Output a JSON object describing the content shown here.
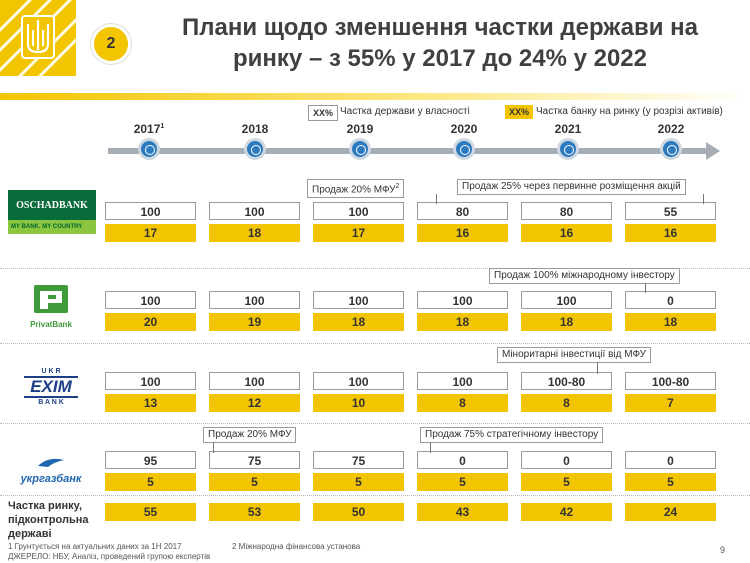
{
  "header": {
    "slide_number": "2",
    "title_line1": "Плани щодо зменшення частки держави на",
    "title_line2": "ринку – з 55% у 2017 до 24% у 2022"
  },
  "legend": {
    "white_box": "XX%",
    "white_text": "Частка держави у власності",
    "yellow_box": "XX%",
    "yellow_text": "Частка банку на ринку (у розрізі активів)"
  },
  "years": [
    "2017",
    "2018",
    "2019",
    "2020",
    "2021",
    "2022"
  ],
  "year_first_sup": "1",
  "banks": [
    {
      "name": "Oschadbank",
      "logo_line1": "OSCHADBANK",
      "logo_line2": "MY BANK. MY COUNTRY",
      "ownership": [
        "100",
        "100",
        "100",
        "80",
        "80",
        "55"
      ],
      "market": [
        "17",
        "18",
        "17",
        "16",
        "16",
        "16"
      ],
      "notes": [
        "Продаж 20% МФУ",
        "Продаж 25% через первинне розміщення акцій"
      ],
      "note1_sup": "2"
    },
    {
      "name": "PrivatBank",
      "logo_text": "PrivatBank",
      "ownership": [
        "100",
        "100",
        "100",
        "100",
        "100",
        "0"
      ],
      "market": [
        "20",
        "19",
        "18",
        "18",
        "18",
        "18"
      ],
      "notes": [
        "Продаж 100% міжнародному інвестору"
      ]
    },
    {
      "name": "Ukreximbank",
      "logo_top": "U K R",
      "logo_mid": "EXIM",
      "logo_bot": "B A N K",
      "ownership": [
        "100",
        "100",
        "100",
        "100",
        "100-80",
        "100-80"
      ],
      "market": [
        "13",
        "12",
        "10",
        "8",
        "8",
        "7"
      ],
      "notes": [
        "Міноритарні інвестиції від МФУ"
      ]
    },
    {
      "name": "Ukrgasbank",
      "logo_text": "укргазбанк",
      "ownership": [
        "95",
        "75",
        "75",
        "0",
        "0",
        "0"
      ],
      "market": [
        "5",
        "5",
        "5",
        "5",
        "5",
        "5"
      ],
      "notes": [
        "Продаж 20% МФУ",
        "Продаж 75% стратегічному інвестору"
      ]
    }
  ],
  "state_share": {
    "label_line1": "Частка ринку,",
    "label_line2": "підконтрольна",
    "label_line3": "державі",
    "values": [
      "55",
      "53",
      "50",
      "43",
      "42",
      "24"
    ]
  },
  "footnotes": {
    "note1": "1 Грунтується на актуальних даних за 1Н 2017",
    "note2": "2 Міжнародна фінансова установа",
    "source": "ДЖЕРЕЛО: НБУ, Аналіз, проведений групою експертів"
  },
  "page_number": "9",
  "colors": {
    "accent_yellow": "#f2c500",
    "timeline_blue": "#2d7bbf",
    "timeline_gray": "#a6adb4",
    "oschad_green": "#0a6b3a",
    "privat_green": "#3f9a3a",
    "exim_blue": "#1d3f87"
  }
}
